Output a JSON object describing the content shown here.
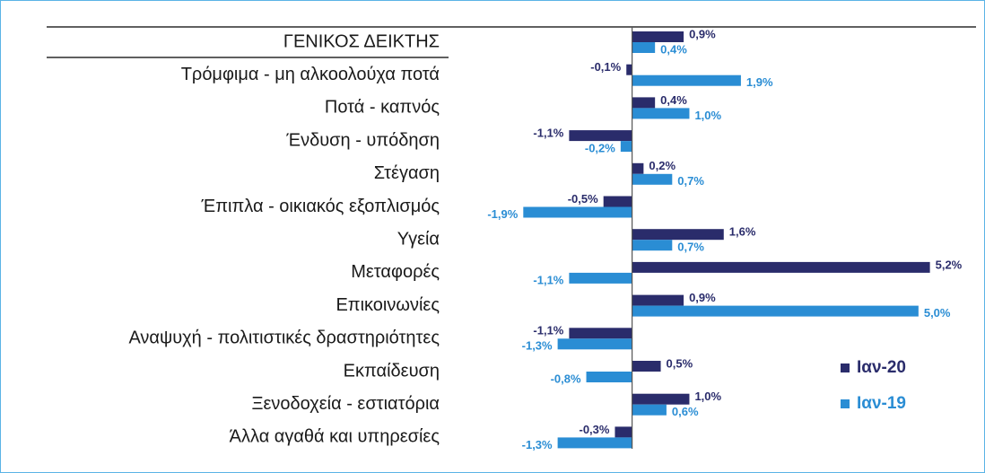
{
  "chart_data": {
    "type": "hbar",
    "categories": [
      "ΓΕΝΙΚΟΣ ΔΕΙΚΤΗΣ",
      "Τρόμφιμα - μη αλκοολούχα ποτά",
      "Ποτά - καπνός",
      "Ένδυση - υπόδηση",
      "Στέγαση",
      "Έπιπλα - οικιακός εξοπλισμός",
      "Υγεία",
      "Μεταφορές",
      "Επικοινωνίες",
      "Αναψυχή - πολιτιστικές δραστηριότητες",
      "Εκπαίδευση",
      "Ξενοδοχεία - εστιατόρια",
      "Άλλα αγαθά και υπηρεσίες"
    ],
    "series": [
      {
        "name": "Ιαν-20",
        "color": "#2a2c6b",
        "values": [
          0.9,
          -0.1,
          0.4,
          -1.1,
          0.2,
          -0.5,
          1.6,
          5.2,
          0.9,
          -1.1,
          0.5,
          1.0,
          -0.3
        ],
        "value_labels": [
          "0,9%",
          "-0,1%",
          "0,4%",
          "-1,1%",
          "0,2%",
          "-0,5%",
          "1,6%",
          "5,2%",
          "0,9%",
          "-1,1%",
          "0,5%",
          "1,0%",
          "-0,3%"
        ]
      },
      {
        "name": "Ιαν-19",
        "color": "#2a8dd4",
        "values": [
          0.4,
          1.9,
          1.0,
          -0.2,
          0.7,
          -1.9,
          0.7,
          -1.1,
          5.0,
          -1.3,
          -0.8,
          0.6,
          -1.3
        ],
        "value_labels": [
          "0,4%",
          "1,9%",
          "1,0%",
          "-0,2%",
          "0,7%",
          "-1,9%",
          "0,7%",
          "-1,1%",
          "5,0%",
          "-1,3%",
          "-0,8%",
          "0,6%",
          "-1,3%"
        ]
      }
    ],
    "xlim": [
      -2.5,
      5.3
    ],
    "legend": "lower-right"
  }
}
